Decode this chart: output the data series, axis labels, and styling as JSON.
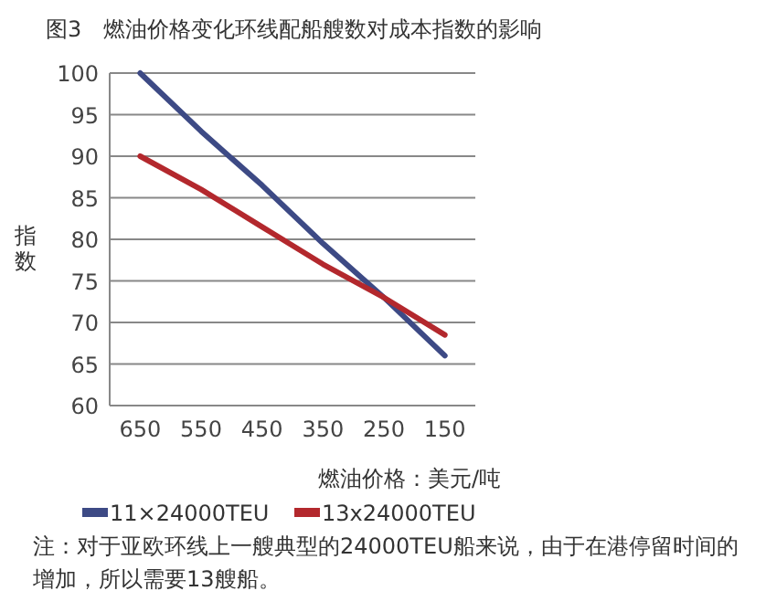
{
  "chart_data": {
    "type": "line",
    "title": "图3　燃油价格变化环线配船艘数对成本指数的影响",
    "xlabel": "燃油价格：美元/吨",
    "ylabel": "指数",
    "categories": [
      "650",
      "550",
      "450",
      "350",
      "250",
      "150"
    ],
    "series": [
      {
        "name": "11×24000TEU",
        "color": "#3d4a85",
        "values": [
          100,
          93,
          86.5,
          79.5,
          73,
          66
        ]
      },
      {
        "name": "13x24000TEU",
        "color": "#b3282d",
        "values": [
          90,
          86,
          81.5,
          77,
          73,
          68.5
        ]
      }
    ],
    "ylim": [
      60,
      100
    ],
    "yticks": [
      60,
      65,
      70,
      75,
      80,
      85,
      90,
      95,
      100
    ],
    "grid": "y",
    "legend": "bottom",
    "marker": "none",
    "line_style": "solid",
    "annotations": [
      "注：对于亚欧环线上一艘典型的24000TEU船来说，由于在港停留时间的增加，所以需要13艘船。"
    ]
  }
}
